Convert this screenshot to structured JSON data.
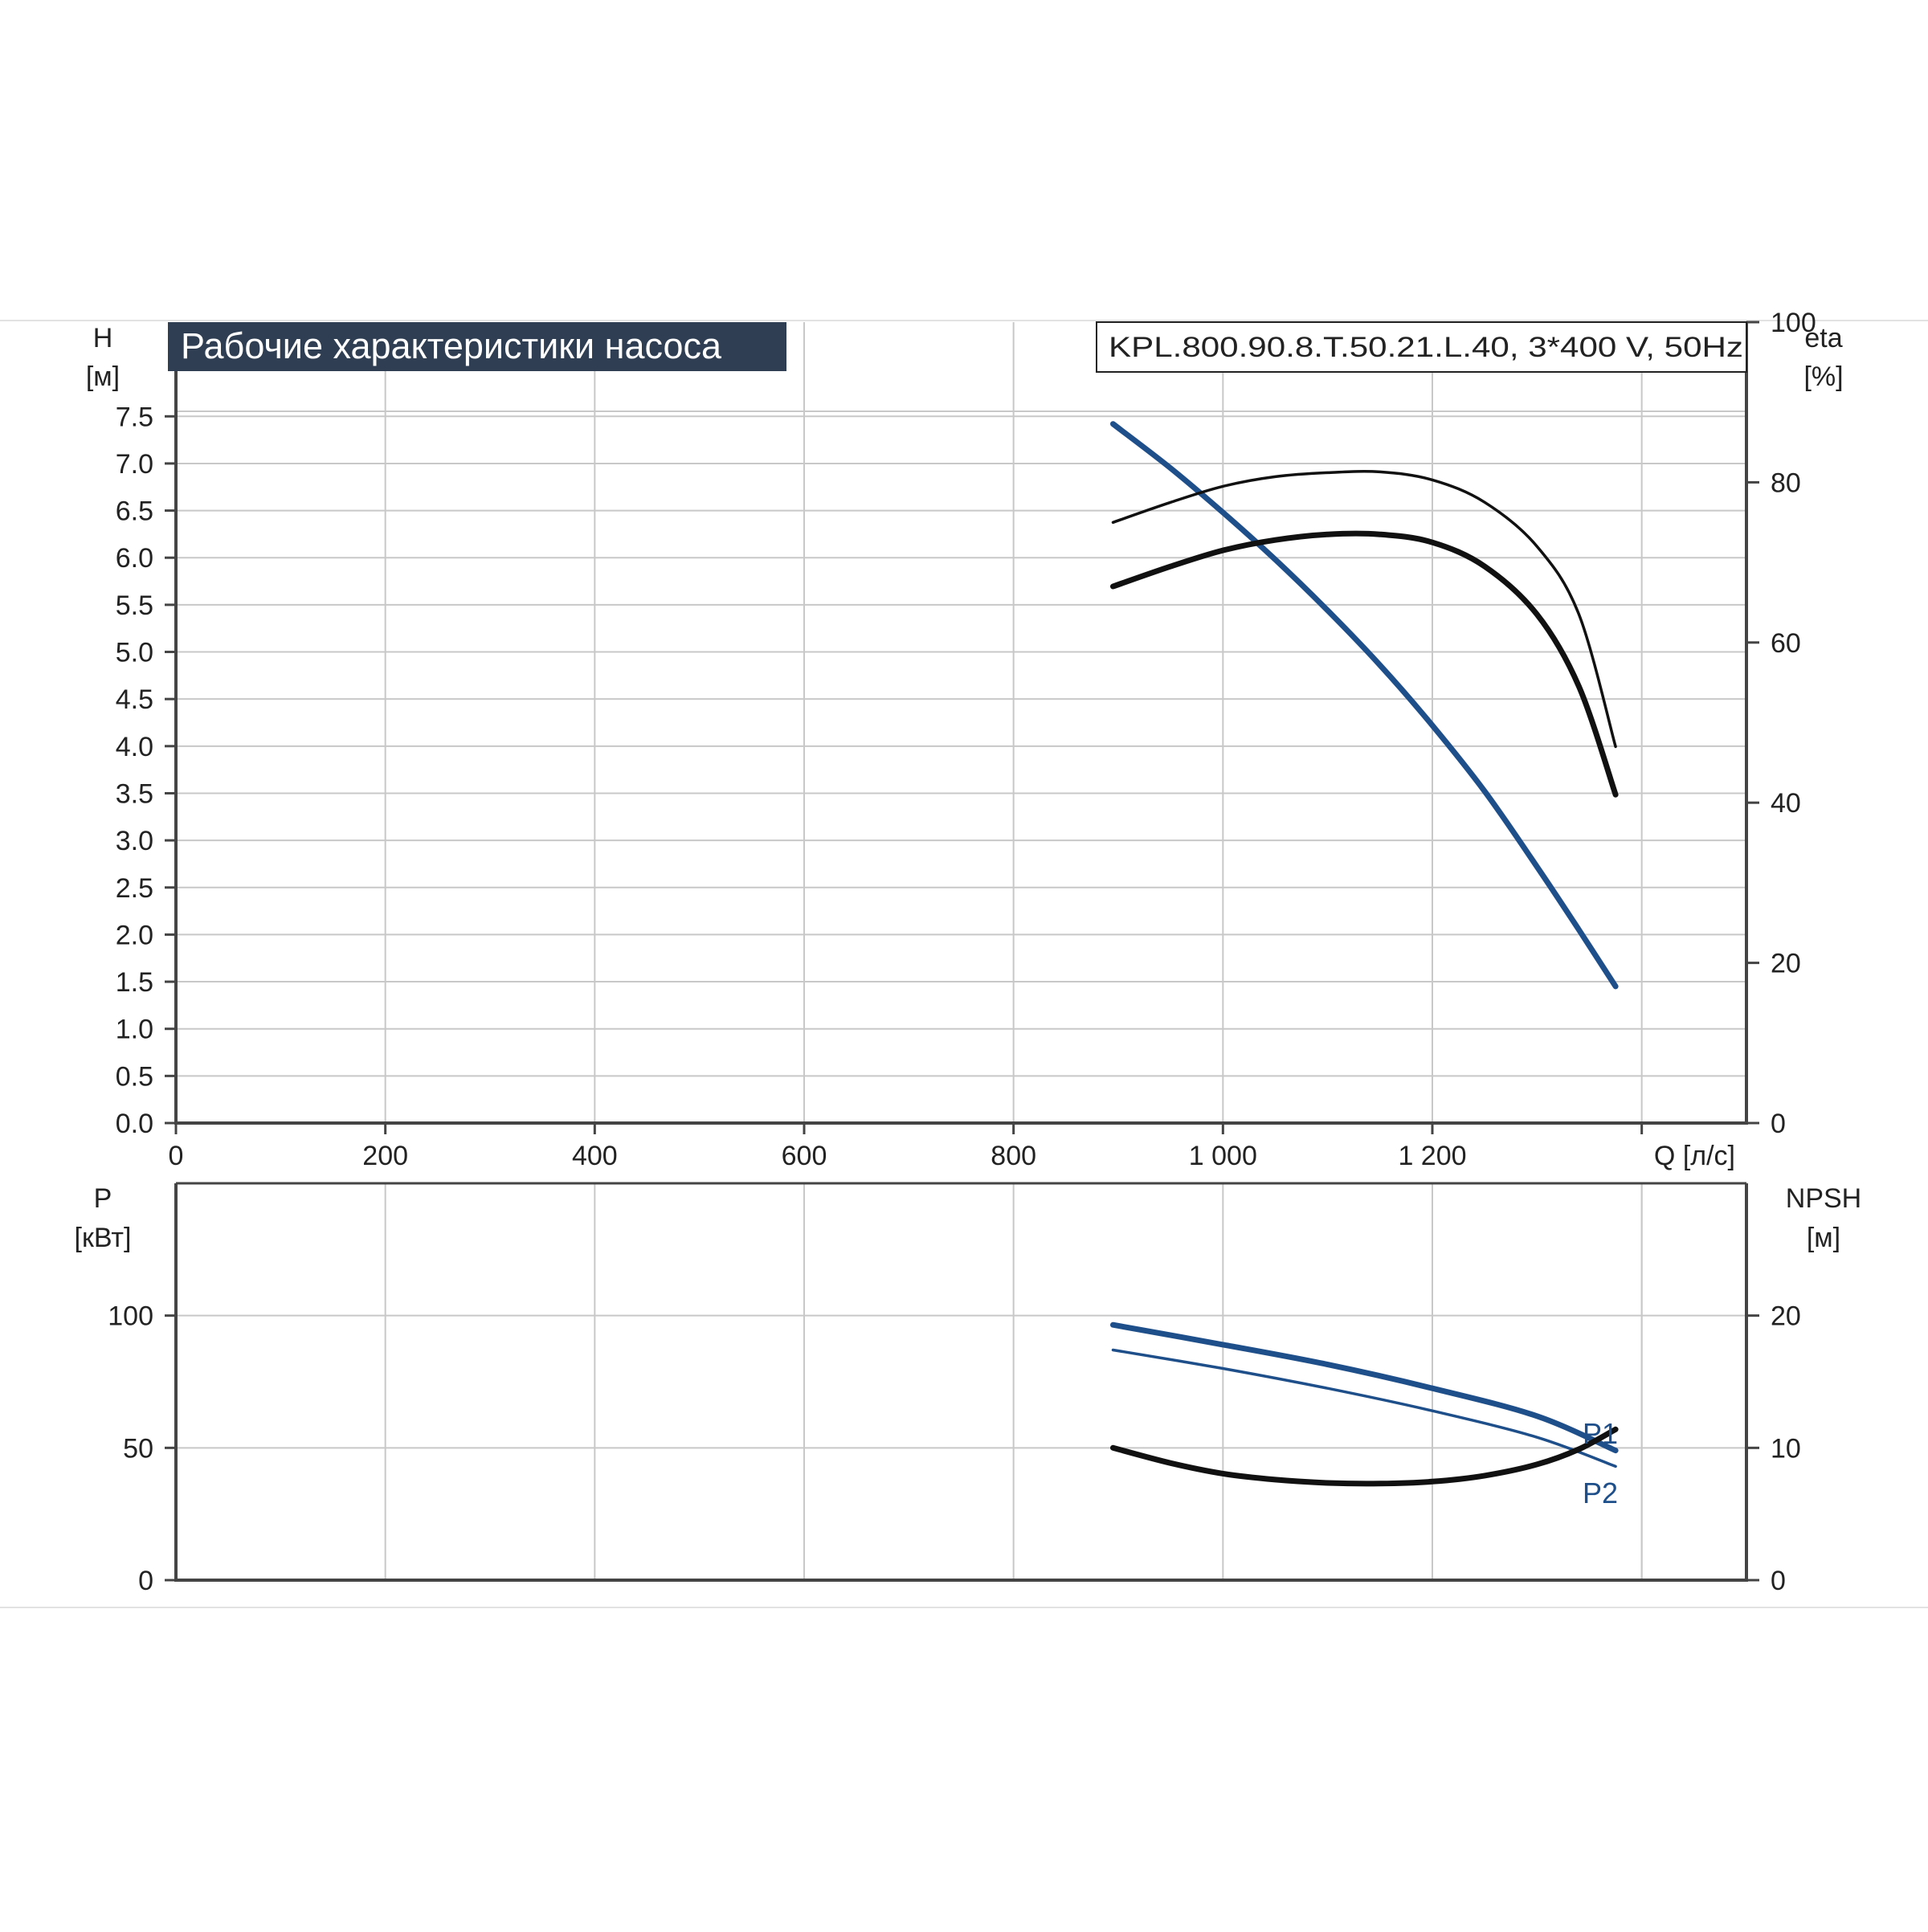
{
  "header": {
    "title": "Рабочие характеристики насоса",
    "model": "KPL.800.90.8.T.50.21.L.40, 3*400 V, 50Hz"
  },
  "colors": {
    "title_bg": "#2f3e52",
    "title_text": "#ffffff",
    "grid": "#c8c8c8",
    "axis": "#444444",
    "blue_curve": "#1f4f8a",
    "black_curve": "#111111",
    "frame_line": "#e2e2e2"
  },
  "chart_data": [
    {
      "type": "line",
      "title": "Рабочие характеристики насоса",
      "x_axis": {
        "label": "Q [л/с]",
        "range": [
          0,
          1500
        ],
        "ticks": [
          0,
          200,
          400,
          600,
          800,
          1000,
          1200
        ],
        "tick_labels": [
          "0",
          "200",
          "400",
          "600",
          "800",
          "1 000",
          "1 200"
        ]
      },
      "y_left": {
        "label_line1": "H",
        "label_line2": "[м]",
        "range": [
          0,
          8.5
        ],
        "ticks": [
          0,
          0.5,
          1,
          1.5,
          2,
          2.5,
          3,
          3.5,
          4,
          4.5,
          5,
          5.5,
          6,
          6.5,
          7,
          7.5
        ],
        "tick_labels": [
          "0.0",
          "0.5",
          "1.0",
          "1.5",
          "2.0",
          "2.5",
          "3.0",
          "3.5",
          "4.0",
          "4.5",
          "5.0",
          "5.5",
          "6.0",
          "6.5",
          "7.0",
          "7.5"
        ]
      },
      "y_right": {
        "label_line1": "eta",
        "label_line2": "[%]",
        "range": [
          0,
          100
        ],
        "ticks": [
          0,
          20,
          40,
          60,
          80,
          100
        ],
        "tick_labels": [
          "0",
          "20",
          "40",
          "60",
          "80",
          "100"
        ]
      },
      "grid": true,
      "series": [
        {
          "axis": "left",
          "color": "#1f4f8a",
          "weight": "thick",
          "x": [
            895,
            950,
            1000,
            1050,
            1100,
            1150,
            1200,
            1250,
            1300,
            1340,
            1375
          ],
          "y": [
            7.42,
            6.95,
            6.48,
            5.98,
            5.44,
            4.86,
            4.22,
            3.52,
            2.72,
            2.05,
            1.45
          ]
        },
        {
          "axis": "right",
          "color": "#111111",
          "weight": "thin",
          "x": [
            895,
            950,
            1000,
            1050,
            1100,
            1150,
            1200,
            1250,
            1300,
            1340,
            1375
          ],
          "y": [
            75,
            77.5,
            79.5,
            80.7,
            81.2,
            81.3,
            80.3,
            77.5,
            72,
            63.5,
            47
          ]
        },
        {
          "axis": "right",
          "color": "#111111",
          "weight": "thick",
          "x": [
            895,
            950,
            1000,
            1050,
            1100,
            1150,
            1200,
            1250,
            1300,
            1340,
            1375
          ],
          "y": [
            67,
            69.5,
            71.5,
            72.8,
            73.5,
            73.5,
            72.5,
            69.5,
            63.5,
            54.5,
            41
          ]
        }
      ]
    },
    {
      "type": "line",
      "x_axis": {
        "range": [
          0,
          1500
        ],
        "ticks": [
          0,
          200,
          400,
          600,
          800,
          1000,
          1200,
          1400
        ]
      },
      "y_left": {
        "label_line1": "P",
        "label_line2": "[кВт]",
        "range": [
          0,
          150
        ],
        "ticks": [
          0,
          50,
          100
        ],
        "tick_labels": [
          "0",
          "50",
          "100"
        ]
      },
      "y_right": {
        "label_line1": "NPSH",
        "label_line2": "[м]",
        "range": [
          0,
          30
        ],
        "ticks": [
          0,
          10,
          20
        ],
        "tick_labels": [
          "0",
          "10",
          "20"
        ]
      },
      "grid": true,
      "series": [
        {
          "name": "P1",
          "axis": "left",
          "color": "#1f4f8a",
          "weight": "thick",
          "x": [
            895,
            1000,
            1100,
            1200,
            1300,
            1375
          ],
          "y": [
            96.5,
            89,
            81.5,
            72.5,
            62,
            49
          ]
        },
        {
          "name": "P2",
          "axis": "left",
          "color": "#1f4f8a",
          "weight": "thin",
          "x": [
            895,
            1000,
            1100,
            1200,
            1300,
            1375
          ],
          "y": [
            87,
            80,
            72.5,
            64,
            54,
            43
          ]
        },
        {
          "axis": "right",
          "color": "#111111",
          "weight": "thick",
          "x": [
            895,
            950,
            1000,
            1050,
            1100,
            1150,
            1200,
            1250,
            1300,
            1340,
            1375
          ],
          "y": [
            10,
            8.85,
            8.05,
            7.6,
            7.35,
            7.3,
            7.45,
            7.9,
            8.75,
            9.9,
            11.4
          ]
        }
      ]
    }
  ]
}
